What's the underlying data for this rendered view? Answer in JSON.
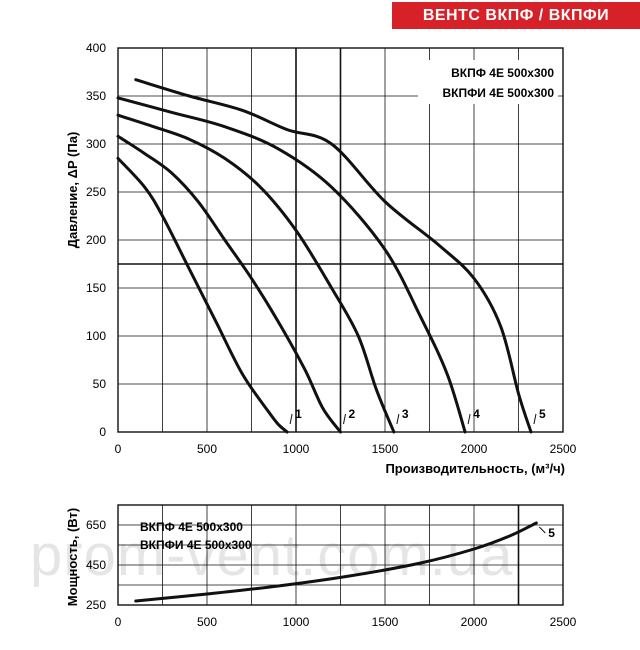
{
  "header": {
    "badge": "ВЕНТС ВКПФ / ВКПФИ"
  },
  "watermark": "prom-vent.com.ua",
  "colors": {
    "badge_bg": "#d62128",
    "curve": "#111111",
    "grid": "#111111"
  },
  "chart_data": [
    {
      "type": "line",
      "legend": [
        "ВКПФ 4Е 500x300",
        "ВКПФИ 4Е 500x300"
      ],
      "legend_position": "top-right",
      "xlabel": "Производительность, (м³/ч)",
      "ylabel": "Давление, ΔP (Па)",
      "xlim": [
        0,
        2500
      ],
      "ylim": [
        0,
        400
      ],
      "x_ticks": [
        "0",
        "500",
        "1000",
        "1500",
        "2000",
        "2500"
      ],
      "y_ticks": [
        "0",
        "50",
        "100",
        "150",
        "200",
        "250",
        "300",
        "350",
        "400"
      ],
      "grid": true,
      "series": [
        {
          "name": "1",
          "points": [
            [
              0,
              285
            ],
            [
              150,
              255
            ],
            [
              250,
              225
            ],
            [
              400,
              170
            ],
            [
              550,
              115
            ],
            [
              700,
              60
            ],
            [
              850,
              20
            ],
            [
              900,
              8
            ],
            [
              950,
              0
            ]
          ]
        },
        {
          "name": "2",
          "points": [
            [
              0,
              308
            ],
            [
              150,
              290
            ],
            [
              300,
              270
            ],
            [
              450,
              240
            ],
            [
              600,
              200
            ],
            [
              750,
              160
            ],
            [
              900,
              115
            ],
            [
              1050,
              65
            ],
            [
              1150,
              25
            ],
            [
              1250,
              0
            ]
          ]
        },
        {
          "name": "3",
          "points": [
            [
              0,
              330
            ],
            [
              200,
              318
            ],
            [
              400,
              305
            ],
            [
              600,
              285
            ],
            [
              800,
              255
            ],
            [
              1000,
              210
            ],
            [
              1200,
              150
            ],
            [
              1350,
              100
            ],
            [
              1450,
              45
            ],
            [
              1550,
              0
            ]
          ]
        },
        {
          "name": "4",
          "points": [
            [
              0,
              348
            ],
            [
              300,
              333
            ],
            [
              600,
              318
            ],
            [
              900,
              295
            ],
            [
              1200,
              255
            ],
            [
              1500,
              190
            ],
            [
              1700,
              120
            ],
            [
              1850,
              60
            ],
            [
              1950,
              0
            ]
          ]
        },
        {
          "name": "5",
          "points": [
            [
              100,
              367
            ],
            [
              400,
              350
            ],
            [
              700,
              335
            ],
            [
              950,
              315
            ],
            [
              1200,
              300
            ],
            [
              1500,
              240
            ],
            [
              1800,
              195
            ],
            [
              2000,
              160
            ],
            [
              2150,
              110
            ],
            [
              2250,
              40
            ],
            [
              2320,
              0
            ]
          ]
        }
      ],
      "marker_lines": {
        "x": [
          1000,
          1250
        ],
        "y": [
          175
        ]
      }
    },
    {
      "type": "line",
      "legend": [
        "ВКПФ 4Е 500x300",
        "ВКПФИ 4Е 500x300"
      ],
      "ylabel": "Мощность, (Вт)",
      "xlim": [
        0,
        2500
      ],
      "ylim": [
        250,
        750
      ],
      "x_ticks": [
        "0",
        "500",
        "1000",
        "1500",
        "2000",
        "2500"
      ],
      "y_ticks": [
        "250",
        "450",
        "650"
      ],
      "grid": true,
      "series": [
        {
          "name": "5",
          "points": [
            [
              100,
              270
            ],
            [
              500,
              305
            ],
            [
              900,
              345
            ],
            [
              1300,
              395
            ],
            [
              1700,
              460
            ],
            [
              2000,
              530
            ],
            [
              2200,
              595
            ],
            [
              2350,
              660
            ]
          ]
        }
      ],
      "marker_lines": {
        "x": [
          2250
        ]
      }
    }
  ]
}
